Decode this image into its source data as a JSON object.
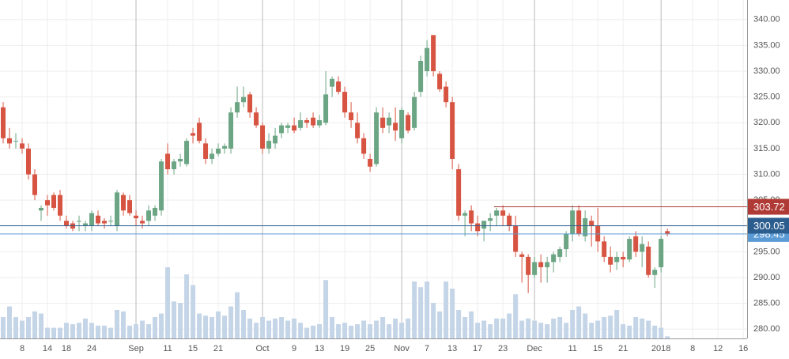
{
  "chart_data": {
    "type": "candlestick",
    "up_color": "#6ba583",
    "down_color": "#d75442",
    "volume_color": "#c5d5e8",
    "xlim": [
      -0.5,
      117.6
    ],
    "ylim": [
      278.2,
      343.8
    ],
    "y2lim": [
      0,
      100
    ],
    "grid": true,
    "yticks": [
      {
        "value": 280,
        "label": "280.00"
      },
      {
        "value": 285,
        "label": "285.00"
      },
      {
        "value": 290,
        "label": "290.00"
      },
      {
        "value": 295,
        "label": "295.00"
      },
      {
        "value": 300,
        "label": "300.00"
      },
      {
        "value": 305,
        "label": "305.00"
      },
      {
        "value": 310,
        "label": "310.00"
      },
      {
        "value": 315,
        "label": "315.00"
      },
      {
        "value": 320,
        "label": "320.00"
      },
      {
        "value": 325,
        "label": "325.00"
      },
      {
        "value": 330,
        "label": "330.00"
      },
      {
        "value": 335,
        "label": "335.00"
      },
      {
        "value": 340,
        "label": "340.00"
      }
    ],
    "xticks": [
      {
        "value": 3,
        "label": "8"
      },
      {
        "value": 7,
        "label": "14"
      },
      {
        "value": 10,
        "label": "18"
      },
      {
        "value": 14,
        "label": "24"
      },
      {
        "value": 21,
        "label": "Sep",
        "major": true
      },
      {
        "value": 26,
        "label": "11"
      },
      {
        "value": 30,
        "label": "15"
      },
      {
        "value": 34,
        "label": "21"
      },
      {
        "value": 41,
        "label": "Oct",
        "major": true
      },
      {
        "value": 46,
        "label": "9"
      },
      {
        "value": 50,
        "label": "13"
      },
      {
        "value": 54,
        "label": "19"
      },
      {
        "value": 58,
        "label": "25"
      },
      {
        "value": 63,
        "label": "Nov",
        "major": true
      },
      {
        "value": 67,
        "label": "7"
      },
      {
        "value": 71,
        "label": "13"
      },
      {
        "value": 75,
        "label": "17"
      },
      {
        "value": 79,
        "label": "23"
      },
      {
        "value": 84,
        "label": "Dec",
        "major": true
      },
      {
        "value": 90,
        "label": "11"
      },
      {
        "value": 94,
        "label": "15"
      },
      {
        "value": 98,
        "label": "21"
      },
      {
        "value": 104,
        "label": "2018",
        "major": true
      },
      {
        "value": 109,
        "label": "8"
      },
      {
        "value": 113,
        "label": "12"
      },
      {
        "value": 117,
        "label": "16"
      }
    ],
    "open": [
      323,
      317,
      316.5,
      316,
      315,
      310,
      303,
      305,
      306,
      306,
      301,
      300.5,
      301,
      300,
      300,
      302,
      301,
      301,
      300,
      306,
      305,
      302,
      301,
      301,
      302,
      303,
      314,
      311,
      312.5,
      312,
      318,
      320,
      316,
      313,
      314,
      315,
      315,
      322,
      324,
      325.5,
      322,
      319.5,
      315,
      316,
      318,
      319,
      319.5,
      319,
      320.5,
      321,
      319.5,
      320,
      327,
      328,
      326,
      322,
      320,
      317,
      313,
      312,
      321,
      319.5,
      320,
      317,
      321.5,
      319,
      326,
      330,
      337,
      329.5,
      327,
      324,
      311,
      302,
      303,
      300.5,
      299.5,
      301,
      302,
      303,
      302,
      300,
      294.5,
      294,
      290.5,
      293,
      292,
      293,
      294,
      295.5,
      298.5,
      303,
      298,
      301,
      300,
      297,
      294,
      293,
      294,
      293.5,
      298,
      295,
      296,
      290.5,
      292,
      299
    ],
    "high": [
      324,
      319,
      318,
      317,
      316,
      311,
      304,
      306,
      306.5,
      307,
      302,
      301,
      302,
      301,
      303,
      303,
      301.5,
      302,
      307,
      306.5,
      306,
      303,
      302,
      304,
      304,
      313,
      316,
      313,
      314,
      317,
      319,
      321,
      317,
      315,
      316,
      316,
      323,
      327,
      327,
      326,
      323,
      320,
      318,
      319,
      320,
      320,
      321,
      322,
      321,
      322,
      321.5,
      330,
      329,
      329,
      327,
      324,
      322,
      318,
      314,
      323,
      323,
      322,
      323,
      323,
      322,
      326,
      333,
      336,
      337,
      330,
      328,
      325,
      312,
      303,
      304,
      302,
      301,
      302.5,
      303.5,
      304,
      302.5,
      302,
      295,
      294.5,
      294,
      294.5,
      294,
      295,
      296,
      299,
      304,
      304,
      303,
      302,
      303.5,
      298,
      296,
      295,
      295,
      298,
      299,
      298,
      297,
      292,
      298,
      299.5
    ],
    "low": [
      316,
      315,
      315,
      314,
      309,
      305,
      301,
      302,
      303,
      301,
      299.5,
      299,
      299,
      299,
      299,
      300,
      299.5,
      300,
      299,
      302,
      302,
      300,
      299.5,
      300,
      301,
      302,
      310,
      310,
      311.5,
      311.5,
      316,
      316,
      312,
      312,
      313.5,
      314,
      314,
      321,
      323,
      321,
      319,
      314,
      314,
      315,
      317,
      318,
      318,
      318.5,
      319,
      319,
      319,
      319.5,
      325,
      325.5,
      321,
      319,
      316,
      313,
      310.5,
      311.5,
      318,
      318,
      316.5,
      316,
      318,
      318.5,
      325,
      329,
      329,
      326,
      323,
      311,
      301,
      298,
      299,
      298,
      297,
      299,
      300,
      300,
      299,
      294,
      289,
      287,
      290,
      289,
      289,
      291,
      293,
      294,
      297,
      298,
      297,
      296,
      295,
      293,
      291,
      291.5,
      292,
      293,
      294,
      292,
      290,
      288,
      291,
      298
    ],
    "close": [
      317,
      316,
      316.5,
      315,
      310,
      306,
      303.5,
      304,
      303.5,
      302,
      300,
      299.5,
      301,
      300.5,
      302.5,
      300.5,
      300.5,
      301,
      306.5,
      303,
      302.5,
      301.5,
      300.5,
      303,
      303.5,
      312.5,
      311,
      312.5,
      313,
      316.5,
      317.5,
      316.5,
      313,
      314,
      315,
      315.5,
      322,
      324,
      325,
      322,
      319.5,
      315,
      316.5,
      317.5,
      319.5,
      319.5,
      318.5,
      320.5,
      320,
      319.5,
      320.5,
      325.5,
      328.5,
      326,
      322,
      320.5,
      317,
      314,
      311.5,
      322,
      319,
      321,
      318.5,
      322.5,
      318.5,
      325,
      332,
      334.5,
      330,
      326.5,
      324,
      313,
      302,
      302.5,
      300.5,
      299,
      301,
      301.5,
      303,
      302,
      300,
      295,
      294,
      290.5,
      293,
      292,
      293,
      294.5,
      295.5,
      298.5,
      303,
      298.5,
      301.5,
      300,
      297,
      294,
      292.5,
      294,
      293.5,
      297.5,
      295,
      296.5,
      290.5,
      291.5,
      297.5,
      298.5
    ],
    "volume": [
      30,
      45,
      30,
      25,
      30,
      38,
      35,
      15,
      15,
      15,
      22,
      20,
      22,
      28,
      22,
      18,
      18,
      15,
      40,
      38,
      18,
      20,
      25,
      20,
      30,
      35,
      100,
      52,
      50,
      90,
      75,
      35,
      32,
      30,
      38,
      32,
      45,
      65,
      40,
      28,
      22,
      30,
      25,
      28,
      30,
      25,
      28,
      22,
      15,
      18,
      20,
      82,
      30,
      20,
      22,
      18,
      20,
      25,
      20,
      25,
      30,
      20,
      28,
      22,
      28,
      80,
      72,
      80,
      50,
      38,
      80,
      70,
      40,
      30,
      38,
      22,
      25,
      20,
      28,
      28,
      35,
      62,
      25,
      28,
      25,
      22,
      20,
      28,
      30,
      22,
      40,
      45,
      35,
      22,
      25,
      30,
      32,
      40,
      20,
      18,
      30,
      28,
      25,
      18,
      15,
      3
    ],
    "levels": [
      {
        "value": 298.45,
        "color": "#5b9bd5"
      },
      {
        "value": 303.72,
        "color": "#b03a35",
        "x_start": 77.6
      },
      {
        "value": 300.05,
        "color": "#2c5d8f"
      }
    ]
  }
}
